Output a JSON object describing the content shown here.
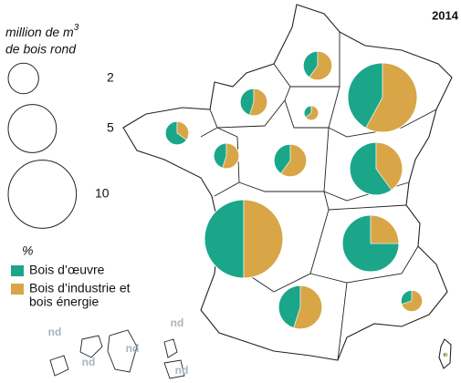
{
  "chart_data": {
    "type": "pie-map",
    "title": "2014",
    "size_legend": {
      "title": "million de m",
      "title_sup": "3",
      "title_line2": "de bois rond",
      "values": [
        2,
        5,
        10
      ]
    },
    "color_legend": {
      "title": "%",
      "series": [
        {
          "name": "Bois d’œuvre",
          "color": "#1ba68a"
        },
        {
          "name": "Bois d’industrie et",
          "name_line2": "bois énergie",
          "color": "#d8a646"
        }
      ]
    },
    "regions": [
      {
        "total": 1.8,
        "values": [
          40,
          60
        ]
      },
      {
        "total": 1.6,
        "values": [
          45,
          55
        ]
      },
      {
        "total": 0.46,
        "values": [
          35,
          65
        ]
      },
      {
        "total": 10.4,
        "values": [
          42,
          58
        ]
      },
      {
        "total": 1.2,
        "values": [
          65,
          35
        ]
      },
      {
        "total": 1.4,
        "values": [
          45,
          55
        ]
      },
      {
        "total": 2.3,
        "values": [
          40,
          60
        ]
      },
      {
        "total": 6.0,
        "values": [
          60,
          40
        ]
      },
      {
        "total": 13.3,
        "values": [
          50,
          50
        ]
      },
      {
        "total": 6.9,
        "values": [
          75,
          25
        ]
      },
      {
        "total": 4.1,
        "values": [
          45,
          55
        ]
      },
      {
        "total": 1.0,
        "values": [
          30,
          70
        ]
      },
      {
        "total": 0.06,
        "values": [
          50,
          50
        ]
      }
    ],
    "nd_labels": [
      "nd",
      "nd",
      "nd",
      "nd",
      "nd"
    ]
  }
}
